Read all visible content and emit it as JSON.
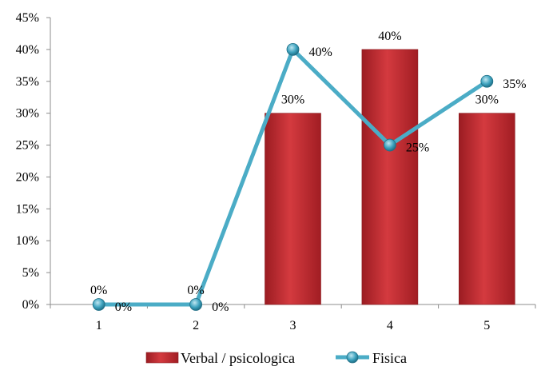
{
  "chart_data": {
    "type": "bar",
    "categories": [
      "1",
      "2",
      "3",
      "4",
      "5"
    ],
    "y_ticks": [
      "0%",
      "5%",
      "10%",
      "15%",
      "20%",
      "25%",
      "30%",
      "35%",
      "40%",
      "45%"
    ],
    "ylim": [
      0,
      45
    ],
    "y_unit": "%",
    "grid": false,
    "legend_position": "bottom",
    "series": [
      {
        "name": "Verbal / psicologica",
        "kind": "bar",
        "color": "#c0272d",
        "values": [
          0,
          0,
          30,
          40,
          30
        ],
        "labels": [
          "0%",
          "0%",
          "30%",
          "40%",
          "30%"
        ]
      },
      {
        "name": "Fisica",
        "kind": "line",
        "color": "#4bacc6",
        "values": [
          0,
          0,
          40,
          25,
          35
        ],
        "labels": [
          "0%",
          "0%",
          "40%",
          "25%",
          "35%"
        ]
      }
    ]
  }
}
